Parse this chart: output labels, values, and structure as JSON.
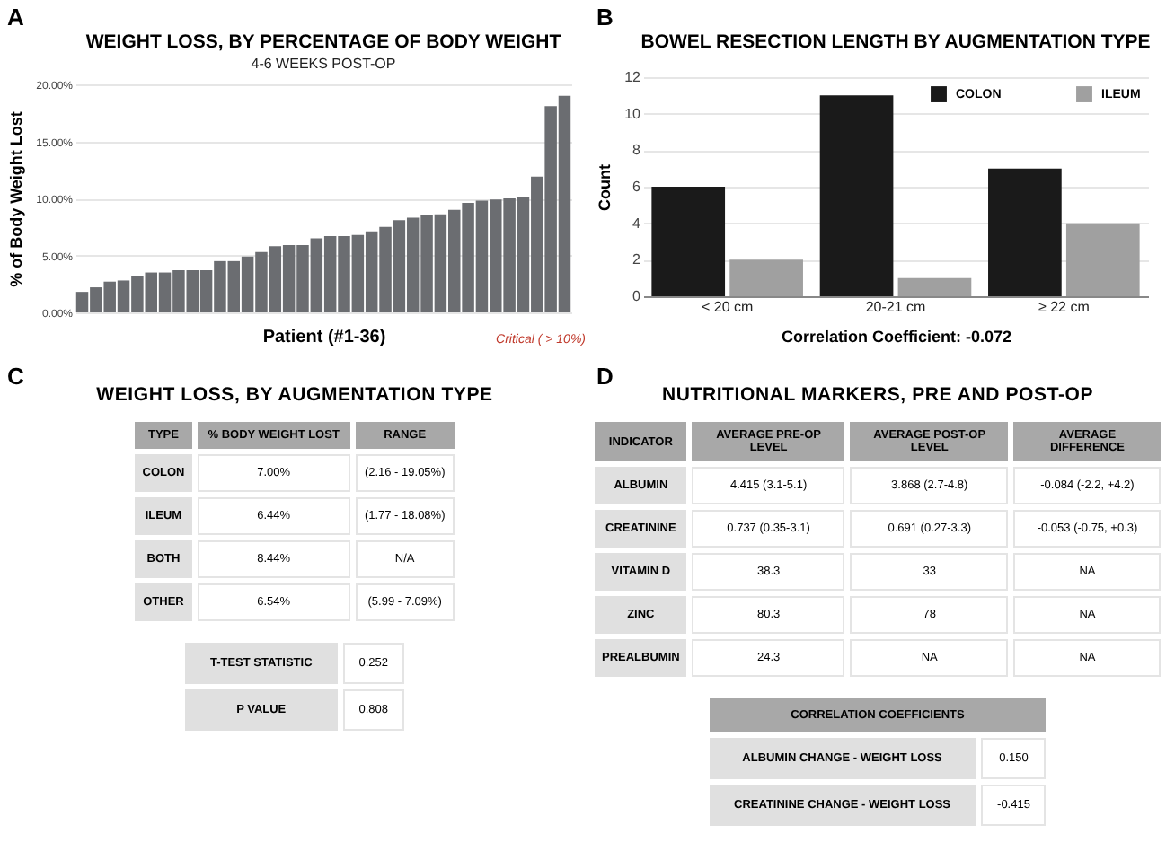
{
  "chart_data": [
    {
      "type": "bar",
      "title": "WEIGHT LOSS, BY PERCENTAGE OF BODY WEIGHT",
      "subtitle": "4-6 WEEKS POST-OP",
      "xlabel": "Patient (#1-36)",
      "ylabel": "% of Body Weight Lost",
      "annotations": [
        "A",
        "Critical ( > 10%)"
      ],
      "categories": [
        null,
        null,
        null,
        null,
        null,
        null,
        null,
        null,
        null,
        null,
        null,
        null,
        null,
        null,
        null,
        null,
        null,
        null,
        null,
        null,
        null,
        null,
        null,
        null,
        null,
        null,
        null,
        null,
        null,
        null,
        null,
        null,
        null,
        null,
        null,
        null
      ],
      "values": [
        1.8,
        2.2,
        2.7,
        2.8,
        3.2,
        3.5,
        3.5,
        3.7,
        3.7,
        3.7,
        4.5,
        4.5,
        4.9,
        5.3,
        5.8,
        5.9,
        5.9,
        6.5,
        6.7,
        6.7,
        6.8,
        7.1,
        7.5,
        8.1,
        8.3,
        8.5,
        8.6,
        9.0,
        9.6,
        9.8,
        9.9,
        10.0,
        10.1,
        11.9,
        18.1,
        19.0
      ],
      "color": "#6b6d71",
      "ylim": [
        0,
        20
      ],
      "yticks": [
        {
          "value": 0,
          "label": "0.00%"
        },
        {
          "value": 5,
          "label": "5.00%"
        },
        {
          "value": 10,
          "label": "10.00%"
        },
        {
          "value": 15,
          "label": "15.00%"
        },
        {
          "value": 20,
          "label": "20.00%"
        }
      ],
      "grid": "y"
    },
    {
      "type": "bar",
      "title": "BOWEL RESECTION LENGTH BY AUGMENTATION TYPE",
      "xlabel": "Correlation Coefficient: -0.072",
      "ylabel": "Count",
      "annotations": [
        "B"
      ],
      "categories": [
        "< 20 cm",
        "20-21 cm",
        "≥ 22 cm"
      ],
      "series": [
        {
          "name": "COLON",
          "color": "#1a1a1a",
          "values": [
            6,
            11,
            7
          ]
        },
        {
          "name": "ILEUM",
          "color": "#a0a0a0",
          "values": [
            2,
            1,
            4
          ]
        }
      ],
      "ylim": [
        0,
        12
      ],
      "yticks": [
        0,
        2,
        4,
        6,
        8,
        10,
        12
      ],
      "grid": "y",
      "legend": "top right"
    },
    {
      "type": "other",
      "title": "WEIGHT LOSS, BY AUGMENTATION TYPE",
      "categories": [
        "TYPE",
        "% BODY WEIGHT LOST",
        "RANGE"
      ],
      "y_categories": [
        "COLON",
        "ILEUM",
        "BOTH",
        "OTHER"
      ],
      "cell_labels": [
        [
          "7.00%",
          "(2.16 - 19.05%)"
        ],
        [
          "6.44%",
          "(1.77 - 18.08%)"
        ],
        [
          "8.44%",
          "N/A"
        ],
        [
          "6.54%",
          "(5.99 - 7.09%)"
        ]
      ],
      "annotations": [
        "C",
        "T-TEST STATISTIC",
        "0.252",
        "P VALUE",
        "0.808"
      ]
    },
    {
      "type": "other",
      "title": "NUTRITIONAL MARKERS, PRE AND POST-OP",
      "categories": [
        "INDICATOR",
        "AVERAGE PRE-OP LEVEL",
        "AVERAGE POST-OP LEVEL",
        "AVERAGE DIFFERENCE"
      ],
      "y_categories": [
        "ALBUMIN",
        "CREATININE",
        "VITAMIN D",
        "ZINC",
        "PREALBUMIN"
      ],
      "cell_labels": [
        [
          "4.415 (3.1-5.1)",
          "3.868 (2.7-4.8)",
          "-0.084 (-2.2, +4.2)"
        ],
        [
          "0.737 (0.35-3.1)",
          "0.691 (0.27-3.3)",
          "-0.053 (-0.75, +0.3)"
        ],
        [
          "38.3",
          "33",
          "NA"
        ],
        [
          "80.3",
          "78",
          "NA"
        ],
        [
          "24.3",
          "NA",
          "NA"
        ]
      ],
      "annotations": [
        "D",
        "CORRELATION COEFFICIENTS",
        "ALBUMIN CHANGE - WEIGHT LOSS",
        "0.150",
        "CREATININE CHANGE -  WEIGHT LOSS",
        "-0.415"
      ]
    }
  ]
}
